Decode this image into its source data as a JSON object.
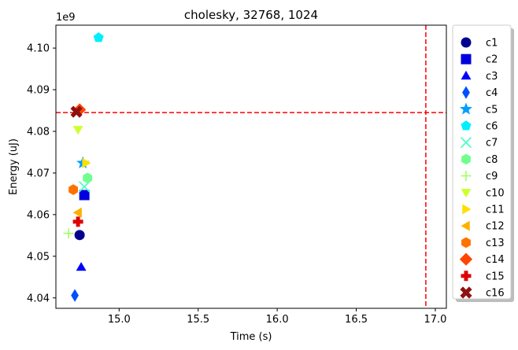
{
  "chart_data": {
    "type": "scatter",
    "title": "cholesky, 32768, 1024",
    "xlabel": "Time (s)",
    "ylabel": "Energy (uJ)",
    "y_offset_label": "1e9",
    "xlim": [
      14.6,
      17.07
    ],
    "ylim": [
      4.0375,
      4.1055
    ],
    "x_ticks": [
      15.0,
      15.5,
      16.0,
      16.5,
      17.0
    ],
    "x_tick_labels": [
      "15.0",
      "15.5",
      "16.0",
      "16.5",
      "17.0"
    ],
    "y_ticks": [
      4.04,
      4.05,
      4.06,
      4.07,
      4.08,
      4.09,
      4.1
    ],
    "y_tick_labels": [
      "4.04",
      "4.05",
      "4.06",
      "4.07",
      "4.08",
      "4.09",
      "4.10"
    ],
    "grid": false,
    "legend_position": "outside-right",
    "reference_lines": [
      {
        "orientation": "horizontal",
        "value": 4.0845,
        "color": "#ff0000",
        "style": "dashed"
      },
      {
        "orientation": "vertical",
        "value": 16.94,
        "color": "#ff0000",
        "style": "dashed"
      }
    ],
    "series": [
      {
        "name": "c1",
        "marker": "circle",
        "color": "#00008f",
        "x": 14.75,
        "y": 4.0551
      },
      {
        "name": "c2",
        "marker": "square",
        "color": "#0000df",
        "x": 14.78,
        "y": 4.0647
      },
      {
        "name": "c3",
        "marker": "triangle-up",
        "color": "#0000ff",
        "x": 14.76,
        "y": 4.0474
      },
      {
        "name": "c4",
        "marker": "diamond-thin",
        "color": "#004fff",
        "x": 14.72,
        "y": 4.0406
      },
      {
        "name": "c5",
        "marker": "star",
        "color": "#009fff",
        "x": 14.77,
        "y": 4.0724
      },
      {
        "name": "c6",
        "marker": "pentagon",
        "color": "#00efff",
        "x": 14.87,
        "y": 4.1025
      },
      {
        "name": "c7",
        "marker": "x",
        "color": "#40ffbf",
        "x": 14.78,
        "y": 4.0667
      },
      {
        "name": "c8",
        "marker": "hexagon",
        "color": "#70ff8f",
        "x": 14.8,
        "y": 4.0688
      },
      {
        "name": "c9",
        "marker": "plus-thin",
        "color": "#9fff60",
        "x": 14.68,
        "y": 4.0555
      },
      {
        "name": "c10",
        "marker": "triangle-down",
        "color": "#cfff30",
        "x": 14.74,
        "y": 4.0804
      },
      {
        "name": "c11",
        "marker": "triangle-right",
        "color": "#ffdf00",
        "x": 14.79,
        "y": 4.0724
      },
      {
        "name": "c12",
        "marker": "triangle-left",
        "color": "#ffaf00",
        "x": 14.74,
        "y": 4.0605
      },
      {
        "name": "c13",
        "marker": "hexagon",
        "color": "#ff7100",
        "x": 14.71,
        "y": 4.066
      },
      {
        "name": "c14",
        "marker": "diamond",
        "color": "#ff4500",
        "x": 14.75,
        "y": 4.0852
      },
      {
        "name": "c15",
        "marker": "plus-filled",
        "color": "#df0000",
        "x": 14.74,
        "y": 4.0583
      },
      {
        "name": "c16",
        "marker": "x-filled",
        "color": "#8f1010",
        "x": 14.73,
        "y": 4.0847
      }
    ]
  }
}
